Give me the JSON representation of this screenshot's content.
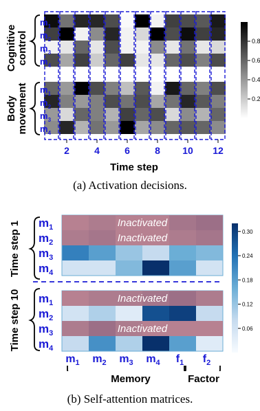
{
  "figure_a": {
    "groups": [
      {
        "label_line1": "Cognitive",
        "label_line2": "control"
      },
      {
        "label_line1": "Body",
        "label_line2": "movement"
      }
    ],
    "row_labels": [
      [
        "m",
        "1"
      ],
      [
        "m",
        "2"
      ],
      [
        "m",
        "3"
      ],
      [
        "m",
        "4"
      ]
    ],
    "xaxis_ticks": [
      "2",
      "4",
      "6",
      "8",
      "10",
      "12"
    ],
    "xaxis_label": "Time step",
    "colorbar_ticks": [
      "0.8",
      "0.6",
      "0.4",
      "0.2"
    ],
    "caption": "(a)  Activation decisions.",
    "chart_data": {
      "type": "heatmap",
      "colorscale": "gray_r",
      "range": [
        0,
        1
      ],
      "columns": 12,
      "cognitive_control": [
        [
          0.95,
          0.55,
          0.85,
          0.85,
          0.7,
          0.02,
          1.0,
          0.05,
          0.75,
          0.7,
          0.65,
          0.9
        ],
        [
          0.75,
          1.0,
          0.05,
          0.45,
          0.85,
          0.05,
          0.15,
          1.0,
          0.7,
          0.95,
          0.75,
          0.85
        ],
        [
          0.05,
          0.1,
          0.6,
          0.1,
          0.7,
          0.05,
          0.05,
          0.45,
          0.1,
          0.55,
          0.1,
          0.15
        ],
        [
          0.7,
          0.35,
          0.75,
          0.2,
          0.6,
          0.75,
          0.1,
          0.1,
          0.6,
          0.7,
          0.5,
          0.7
        ]
      ],
      "body_movement": [
        [
          0.6,
          0.4,
          1.0,
          0.7,
          0.5,
          0.25,
          0.65,
          0.05,
          0.9,
          0.6,
          0.5,
          0.7
        ],
        [
          0.85,
          0.5,
          0.4,
          0.5,
          0.7,
          0.55,
          0.7,
          0.35,
          0.55,
          0.85,
          0.65,
          0.5
        ],
        [
          0.4,
          0.15,
          0.6,
          0.5,
          0.3,
          0.75,
          0.6,
          0.7,
          0.15,
          0.45,
          0.3,
          0.6
        ],
        [
          0.45,
          0.85,
          0.3,
          0.55,
          0.4,
          1.0,
          0.35,
          0.45,
          0.6,
          0.65,
          0.6,
          0.45
        ]
      ]
    }
  },
  "figure_b": {
    "groups": [
      {
        "label": "Time step 1"
      },
      {
        "label": "Time step 10"
      }
    ],
    "row_labels": [
      [
        "m",
        "1"
      ],
      [
        "m",
        "2"
      ],
      [
        "m",
        "3"
      ],
      [
        "m",
        "4"
      ]
    ],
    "col_labels": [
      [
        "m",
        "1"
      ],
      [
        "m",
        "2"
      ],
      [
        "m",
        "3"
      ],
      [
        "m",
        "4"
      ],
      [
        "f",
        "1"
      ],
      [
        "f",
        "2"
      ]
    ],
    "inactivated_text": "Inactivated",
    "group_labels": {
      "memory": "Memory",
      "factor": "Factor"
    },
    "colorbar_ticks": [
      "0.30",
      "0.24",
      "0.18",
      "0.12",
      "0.06"
    ],
    "caption": "(b)  Self-attention matrices.",
    "chart_data": {
      "type": "heatmap",
      "colorscale": "Blues",
      "range": [
        0,
        0.32
      ],
      "columns": 6,
      "time_step_1": {
        "inactivated_rows": [
          0,
          1
        ],
        "values": [
          [
            0.14,
            0.16,
            0.14,
            0.14,
            0.18,
            0.2
          ],
          [
            0.16,
            0.18,
            0.14,
            0.14,
            0.16,
            0.18
          ],
          [
            0.22,
            0.18,
            0.12,
            0.08,
            0.16,
            0.14
          ],
          [
            0.06,
            0.06,
            0.14,
            0.32,
            0.18,
            0.06
          ]
        ]
      },
      "time_step_10": {
        "inactivated_rows": [
          0,
          2
        ],
        "values": [
          [
            0.14,
            0.16,
            0.16,
            0.18,
            0.2,
            0.16
          ],
          [
            0.06,
            0.1,
            0.04,
            0.28,
            0.3,
            0.08
          ],
          [
            0.16,
            0.2,
            0.16,
            0.14,
            0.14,
            0.14
          ],
          [
            0.08,
            0.2,
            0.1,
            0.32,
            0.18,
            0.04
          ]
        ]
      }
    }
  },
  "colors": {
    "accent_blue": "#1a1ad6",
    "inactive_overlay": "#e35454",
    "inactive_text": "#ffffff"
  }
}
